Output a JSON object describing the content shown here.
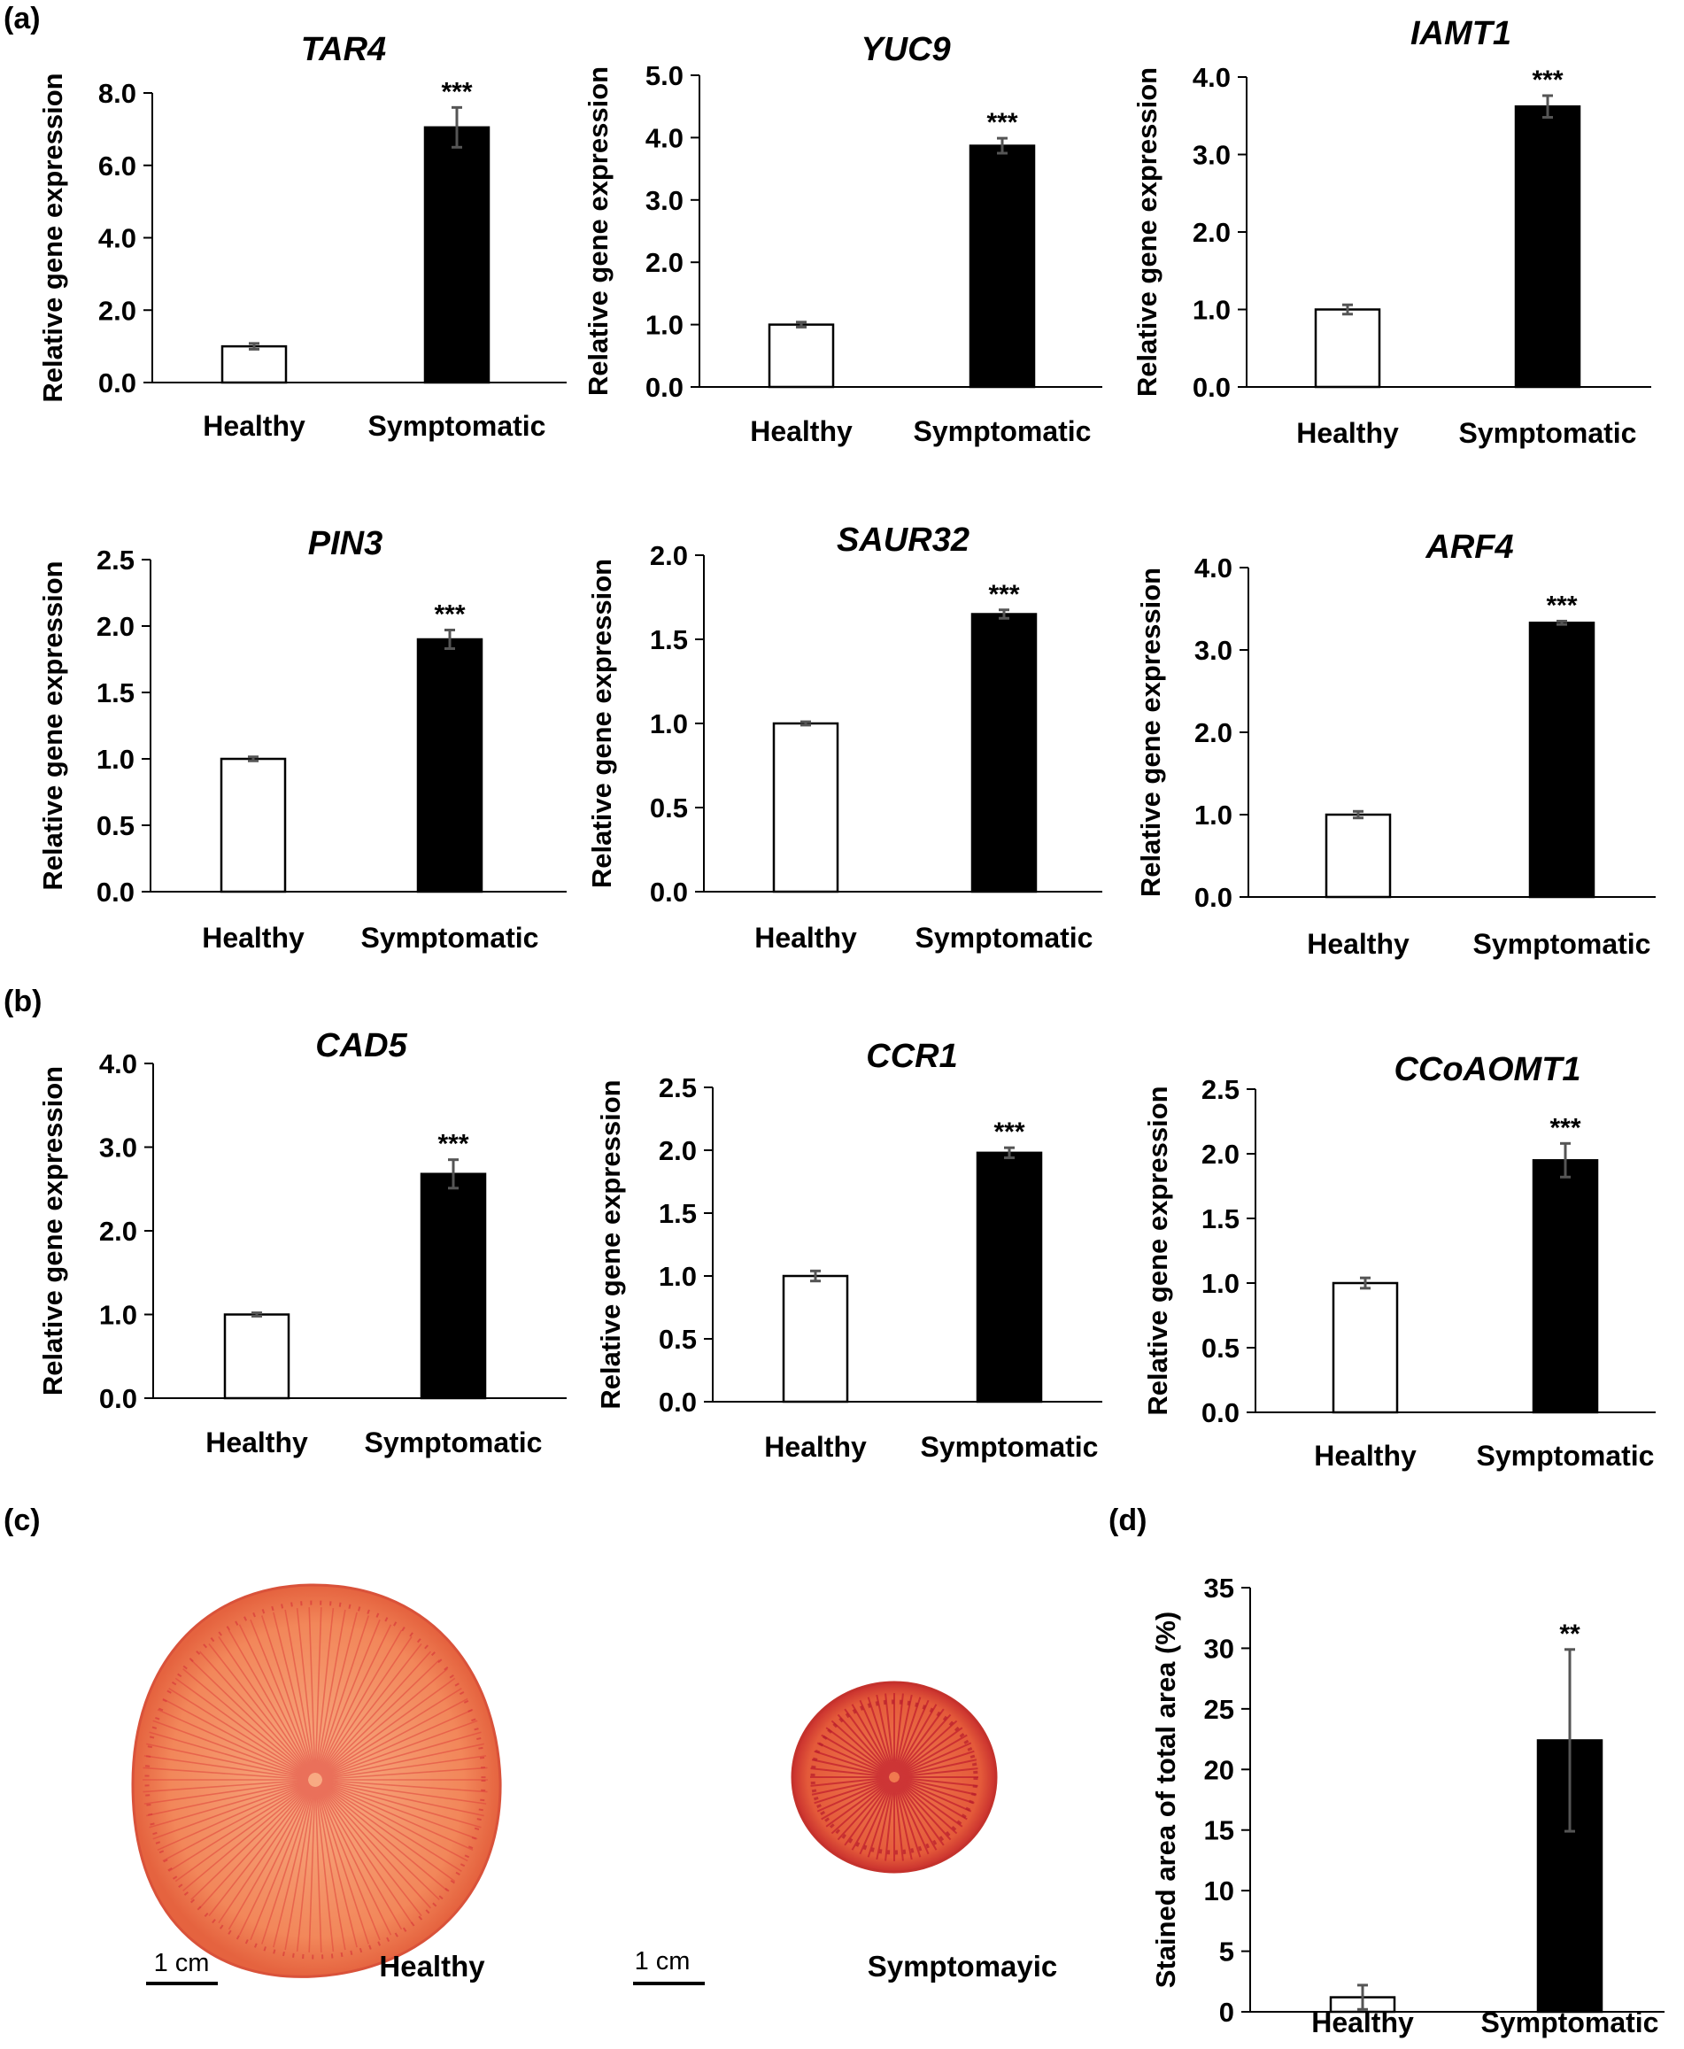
{
  "panel_labels": {
    "a": "(a)",
    "b": "(b)",
    "c": "(c)",
    "d": "(d)"
  },
  "colors": {
    "healthy_fill": "#ffffff",
    "symptomatic_fill": "#000000",
    "axis": "#000000",
    "error_bar": "#555555",
    "slice_outer": "#f07a52",
    "slice_inner": "#f6a07a",
    "slice_vein": "#d8263a"
  },
  "chart_data": [
    {
      "id": "tar4",
      "type": "bar",
      "title": "TAR4",
      "ylabel": "Relative gene expression",
      "categories": [
        "Healthy",
        "Symptomatic"
      ],
      "values": [
        1.0,
        7.05
      ],
      "errors": [
        0.08,
        0.55
      ],
      "significance": [
        "",
        "***"
      ],
      "yticks": [
        "0.0",
        "2.0",
        "4.0",
        "6.0",
        "8.0"
      ],
      "ylim": [
        0,
        8
      ]
    },
    {
      "id": "yuc9",
      "type": "bar",
      "title": "YUC9",
      "ylabel": "Relative gene expression",
      "categories": [
        "Healthy",
        "Symptomatic"
      ],
      "values": [
        1.0,
        3.87
      ],
      "errors": [
        0.04,
        0.12
      ],
      "significance": [
        "",
        "***"
      ],
      "yticks": [
        "0.0",
        "1.0",
        "2.0",
        "3.0",
        "4.0",
        "5.0"
      ],
      "ylim": [
        0,
        5
      ]
    },
    {
      "id": "iamt1",
      "type": "bar",
      "title": "IAMT1",
      "ylabel": "Relative gene expression",
      "categories": [
        "Healthy",
        "Symptomatic"
      ],
      "values": [
        1.0,
        3.62
      ],
      "errors": [
        0.06,
        0.14
      ],
      "significance": [
        "",
        "***"
      ],
      "yticks": [
        "0.0",
        "1.0",
        "2.0",
        "3.0",
        "4.0"
      ],
      "ylim": [
        0,
        4
      ]
    },
    {
      "id": "pin3",
      "type": "bar",
      "title": "PIN3",
      "ylabel": "Relative gene expression",
      "categories": [
        "Healthy",
        "Symptomatic"
      ],
      "values": [
        1.0,
        1.9
      ],
      "errors": [
        0.015,
        0.07
      ],
      "significance": [
        "",
        "***"
      ],
      "yticks": [
        "0.0",
        "0.5",
        "1.0",
        "1.5",
        "2.0",
        "2.5"
      ],
      "ylim": [
        0,
        2.5
      ]
    },
    {
      "id": "saur32",
      "type": "bar",
      "title": "SAUR32",
      "ylabel": "Relative gene expression",
      "categories": [
        "Healthy",
        "Symptomatic"
      ],
      "values": [
        1.0,
        1.65
      ],
      "errors": [
        0.01,
        0.025
      ],
      "significance": [
        "",
        "***"
      ],
      "yticks": [
        "0.0",
        "0.5",
        "1.0",
        "1.5",
        "2.0"
      ],
      "ylim": [
        0,
        2
      ]
    },
    {
      "id": "arf4",
      "type": "bar",
      "title": "ARF4",
      "ylabel": "Relative gene expression",
      "categories": [
        "Healthy",
        "Symptomatic"
      ],
      "values": [
        1.0,
        3.33
      ],
      "errors": [
        0.04,
        0.02
      ],
      "significance": [
        "",
        "***"
      ],
      "yticks": [
        "0.0",
        "1.0",
        "2.0",
        "3.0",
        "4.0"
      ],
      "ylim": [
        0,
        4
      ]
    },
    {
      "id": "cad5",
      "type": "bar",
      "title": "CAD5",
      "ylabel": "Relative gene expression",
      "categories": [
        "Healthy",
        "Symptomatic"
      ],
      "values": [
        1.0,
        2.68
      ],
      "errors": [
        0.02,
        0.17
      ],
      "significance": [
        "",
        "***"
      ],
      "yticks": [
        "0.0",
        "1.0",
        "2.0",
        "3.0",
        "4.0"
      ],
      "ylim": [
        0,
        4
      ]
    },
    {
      "id": "ccr1",
      "type": "bar",
      "title": "CCR1",
      "ylabel": "Relative gene expression",
      "categories": [
        "Healthy",
        "Symptomatic"
      ],
      "values": [
        1.0,
        1.98
      ],
      "errors": [
        0.04,
        0.04
      ],
      "significance": [
        "",
        "***"
      ],
      "yticks": [
        "0.0",
        "0.5",
        "1.0",
        "1.5",
        "2.0",
        "2.5"
      ],
      "ylim": [
        0,
        2.5
      ]
    },
    {
      "id": "ccoaomt1",
      "type": "bar",
      "title": "CCoAOMT1",
      "ylabel": "Relative gene expression",
      "categories": [
        "Healthy",
        "Symptomatic"
      ],
      "values": [
        1.0,
        1.95
      ],
      "errors": [
        0.04,
        0.13
      ],
      "significance": [
        "",
        "***"
      ],
      "yticks": [
        "0.0",
        "0.5",
        "1.0",
        "1.5",
        "2.0",
        "2.5"
      ],
      "ylim": [
        0,
        2.5
      ]
    },
    {
      "id": "stained",
      "type": "bar",
      "title": "",
      "ylabel": "Stained area of total area (%)",
      "categories": [
        "Healthy",
        "Symptomatic"
      ],
      "values": [
        1.2,
        22.4
      ],
      "errors": [
        1.0,
        7.5
      ],
      "significance": [
        "",
        "**"
      ],
      "yticks": [
        "0",
        "5",
        "10",
        "15",
        "20",
        "25",
        "30",
        "35"
      ],
      "ylim": [
        0,
        35
      ]
    }
  ],
  "photo": {
    "left_label": "Healthy",
    "right_label": "Symptomayic",
    "scale_left": "1 cm",
    "scale_right": "1 cm"
  }
}
